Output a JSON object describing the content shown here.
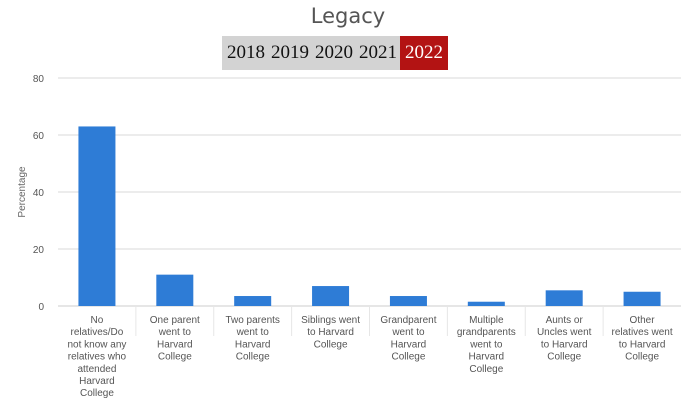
{
  "title": "Legacy",
  "year_tabs": [
    {
      "label": "2018",
      "active": false
    },
    {
      "label": "2019",
      "active": false
    },
    {
      "label": "2020",
      "active": false
    },
    {
      "label": "2021",
      "active": false
    },
    {
      "label": "2022",
      "active": true
    }
  ],
  "colors": {
    "bar": "#2e7cd6",
    "grid": "#d9d9d9",
    "active_tab": "#b31313",
    "tab": "#d3d3d3"
  },
  "chart_data": {
    "type": "bar",
    "title": "Legacy",
    "xlabel": "",
    "ylabel": "Percentage",
    "ylim": [
      0,
      80
    ],
    "yticks": [
      0,
      20,
      40,
      60,
      80
    ],
    "grid": true,
    "categories": [
      [
        "No",
        "relatives/Do",
        "not know any",
        "relatives who",
        "attended",
        "Harvard",
        "College"
      ],
      [
        "One parent",
        "went to",
        "Harvard",
        "College"
      ],
      [
        "Two parents",
        "went to",
        "Harvard",
        "College"
      ],
      [
        "Siblings went",
        "to Harvard",
        "College"
      ],
      [
        "Grandparent",
        "went to",
        "Harvard",
        "College"
      ],
      [
        "Multiple",
        "grandparents",
        "went to",
        "Harvard",
        "College"
      ],
      [
        "Aunts or",
        "Uncles went",
        "to Harvard",
        "College"
      ],
      [
        "Other",
        "relatives went",
        "to Harvard",
        "College"
      ]
    ],
    "values": [
      63,
      11,
      3.5,
      7,
      3.5,
      1.5,
      5.5,
      5
    ]
  }
}
